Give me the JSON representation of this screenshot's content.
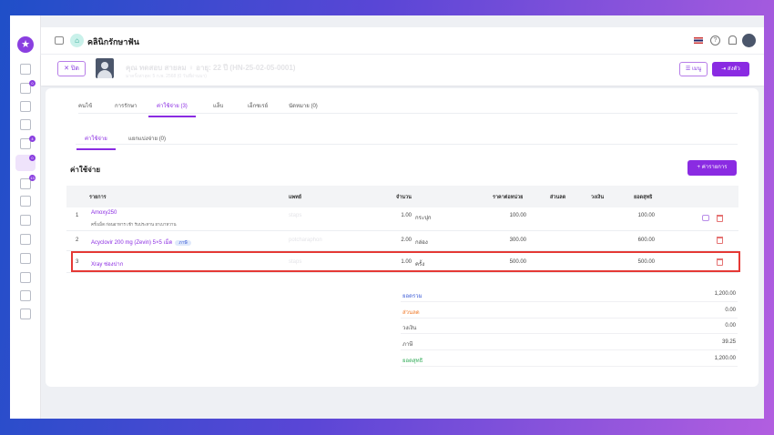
{
  "app": {
    "title": "คลินิกรักษาฟัน",
    "logo_icon": "star-icon"
  },
  "sidebar": {
    "badges": [
      "0",
      "4",
      "0",
      "13"
    ]
  },
  "patient": {
    "close_label": "ปิด",
    "name": "คุณ ทดสอบ สายลม ♀ อายุ: 22 ปี (HN-25-02-05-0001)",
    "last_visit": "มาครั้งล่าสุด: 5 ก.พ. 2568 (0 วันที่ผ่านมา)",
    "menu_label": "เมนู",
    "send_label": "ส่งตัว"
  },
  "tabs": [
    "คนไข้",
    "การรักษา",
    "ค่าใช้จ่าย (3)",
    "แล็บ",
    "เอ็กซเรย์",
    "นัดหมาย (0)"
  ],
  "subtabs": [
    "ค่าใช้จ่าย",
    "แยกแบ่งจ่าย (0)"
  ],
  "section": {
    "title": "ค่าใช้จ่าย",
    "add_label": "+ ค่ารายการ"
  },
  "table": {
    "headers": [
      "รายการ",
      "แพทย์",
      "จำนวน",
      "ราคาต่อหน่วย",
      "ส่วนลด",
      "วงเงิน",
      "ยอดสุทธิ"
    ],
    "rows": [
      {
        "no": "1",
        "name": "Amoxy250",
        "desc": "ครั้งเม็ด ก่อนอาหาร เช้า รับประทาน ยาเบาหวาน",
        "doctor": "staps",
        "qty": "1.00",
        "unit": "กระปุก",
        "price": "100.00",
        "discount": "",
        "limit": "",
        "net": "100.00",
        "badge": ""
      },
      {
        "no": "2",
        "name": "Acyclovir 200 mg (Zevin) 5×5 เม็ด",
        "desc": "",
        "doctor": "potcharaphon",
        "qty": "2.00",
        "unit": "กล่อง",
        "price": "300.00",
        "discount": "",
        "limit": "",
        "net": "600.00",
        "badge": "ภาษี"
      },
      {
        "no": "3",
        "name": "Xray ช่องปาก",
        "desc": "",
        "doctor": "staps",
        "qty": "1.00",
        "unit": "ครั้ง",
        "price": "500.00",
        "discount": "",
        "limit": "",
        "net": "500.00",
        "badge": ""
      }
    ]
  },
  "summary": [
    {
      "label": "ยอดรวม",
      "value": "1,200.00",
      "color": "#3b5bd6"
    },
    {
      "label": "ส่วนลด",
      "value": "0.00",
      "color": "#f07a2a"
    },
    {
      "label": "วงเงิน",
      "value": "0.00",
      "color": "#555555"
    },
    {
      "label": "ภาษี",
      "value": "39.25",
      "color": "#555555"
    },
    {
      "label": "ยอดสุทธิ",
      "value": "1,200.00",
      "color": "#2eaa55"
    }
  ],
  "colors": {
    "accent": "#8a2be2",
    "highlight": "#e53935"
  }
}
